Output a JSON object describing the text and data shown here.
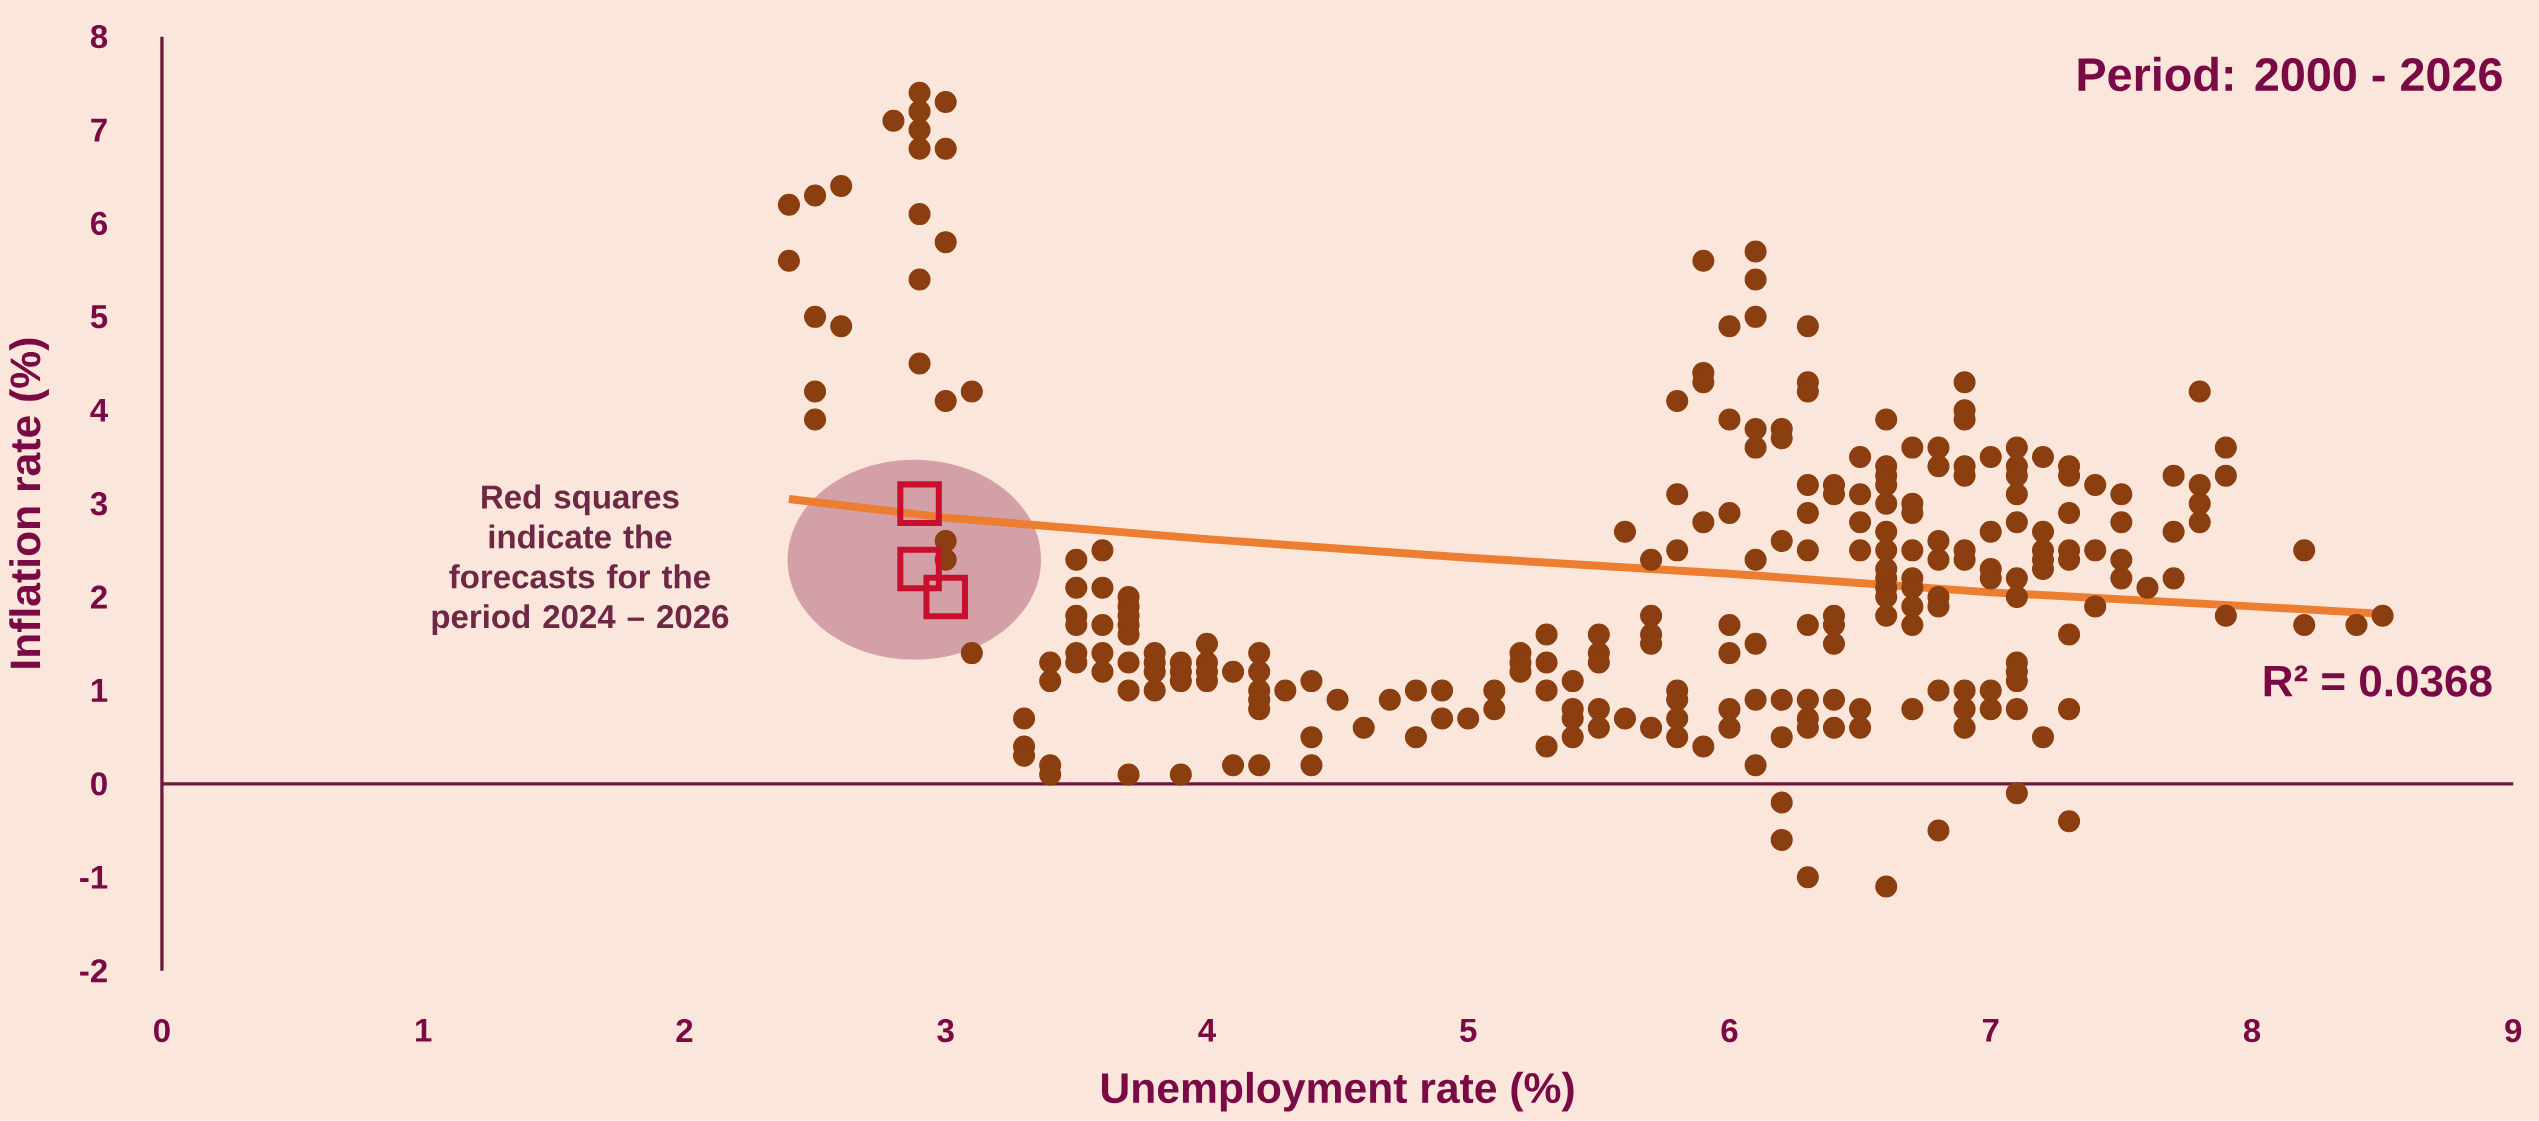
{
  "chart_data": {
    "type": "scatter",
    "title": "Period: 2000 - 2026",
    "xlabel": "Unemployment rate (%)",
    "ylabel": "Inflation rate (%)",
    "xlim": [
      0,
      9
    ],
    "ylim": [
      -2,
      8
    ],
    "xticks": [
      0,
      1,
      2,
      3,
      4,
      5,
      6,
      7,
      8,
      9
    ],
    "yticks": [
      -2,
      -1,
      0,
      1,
      2,
      3,
      4,
      5,
      6,
      7,
      8
    ],
    "grid": false,
    "ref_lines": [
      {
        "axis": "y",
        "value": 0,
        "color": "#6b1a3d"
      }
    ],
    "annotations": [
      "Red squares indicate the forecasts for the period 2024 – 2026",
      "R² = 0.0368"
    ],
    "series": [
      {
        "marker": "circle",
        "color": "#8b3e0f",
        "x": [
          2.4,
          2.4,
          2.5,
          2.6,
          2.5,
          2.6,
          2.5,
          2.5,
          2.8,
          2.9,
          2.9,
          2.9,
          2.9,
          3.0,
          3.0,
          2.9,
          3.0,
          2.9,
          2.9,
          3.0,
          3.1,
          3.0,
          3.0,
          3.1,
          3.3,
          3.3,
          3.3,
          3.4,
          3.4,
          3.4,
          3.4,
          3.5,
          3.5,
          3.5,
          3.5,
          3.5,
          3.5,
          3.6,
          3.6,
          3.6,
          3.6,
          3.6,
          3.7,
          3.7,
          3.7,
          3.7,
          3.7,
          3.7,
          3.7,
          3.7,
          3.8,
          3.8,
          3.8,
          3.8,
          3.9,
          3.9,
          3.9,
          3.9,
          4.0,
          4.0,
          4.0,
          4.0,
          4.1,
          4.1,
          4.2,
          4.2,
          4.2,
          4.2,
          4.2,
          4.2,
          4.3,
          4.4,
          4.4,
          4.4,
          4.5,
          4.6,
          4.7,
          4.8,
          4.8,
          4.9,
          4.9,
          5.0,
          5.1,
          5.1,
          5.2,
          5.2,
          5.2,
          5.3,
          5.3,
          5.3,
          5.3,
          5.4,
          5.4,
          5.4,
          5.4,
          5.5,
          5.5,
          5.5,
          5.5,
          5.5,
          5.6,
          5.6,
          5.7,
          5.7,
          5.7,
          5.7,
          5.7,
          5.8,
          5.8,
          5.8,
          5.8,
          5.8,
          5.8,
          5.8,
          5.9,
          5.9,
          5.9,
          5.9,
          5.9,
          6.0,
          6.0,
          6.0,
          6.0,
          6.0,
          6.0,
          6.0,
          6.1,
          6.1,
          6.1,
          6.1,
          6.1,
          6.1,
          6.1,
          6.1,
          6.1,
          6.2,
          6.2,
          6.2,
          6.2,
          6.2,
          6.2,
          6.2,
          6.3,
          6.3,
          6.3,
          6.3,
          6.3,
          6.3,
          6.3,
          6.3,
          6.3,
          6.3,
          6.3,
          6.4,
          6.4,
          6.4,
          6.4,
          6.4,
          6.4,
          6.4,
          6.5,
          6.5,
          6.5,
          6.5,
          6.5,
          6.5,
          6.6,
          6.6,
          6.6,
          6.6,
          6.6,
          6.6,
          6.6,
          6.6,
          6.6,
          6.6,
          6.6,
          6.6,
          6.6,
          6.7,
          6.7,
          6.7,
          6.7,
          6.7,
          6.7,
          6.7,
          6.7,
          6.7,
          6.8,
          6.8,
          6.8,
          6.8,
          6.8,
          6.8,
          6.8,
          6.8,
          6.9,
          6.9,
          6.9,
          6.9,
          6.9,
          6.9,
          6.9,
          6.9,
          6.9,
          6.9,
          7.0,
          7.0,
          7.0,
          7.0,
          7.0,
          7.0,
          7.1,
          7.1,
          7.1,
          7.1,
          7.1,
          7.1,
          7.1,
          7.1,
          7.1,
          7.1,
          7.1,
          7.1,
          7.2,
          7.2,
          7.2,
          7.2,
          7.2,
          7.2,
          7.3,
          7.3,
          7.3,
          7.3,
          7.3,
          7.3,
          7.3,
          7.3,
          7.4,
          7.4,
          7.4,
          7.5,
          7.5,
          7.5,
          7.5,
          7.6,
          7.7,
          7.7,
          7.7,
          7.8,
          7.8,
          7.8,
          7.8,
          7.9,
          7.9,
          7.9,
          8.2,
          8.2,
          8.4,
          8.5
        ],
        "values": [
          6.2,
          5.6,
          6.3,
          6.4,
          5.0,
          4.9,
          4.2,
          3.9,
          7.1,
          7.4,
          7.2,
          7.0,
          6.8,
          7.3,
          6.8,
          6.1,
          5.8,
          5.4,
          4.5,
          4.1,
          4.2,
          2.6,
          2.4,
          1.4,
          0.7,
          0.4,
          0.3,
          1.3,
          1.1,
          0.2,
          0.1,
          2.4,
          2.1,
          1.8,
          1.7,
          1.4,
          1.3,
          2.5,
          2.1,
          1.7,
          1.4,
          1.2,
          2.0,
          1.9,
          1.8,
          1.7,
          1.6,
          1.3,
          1.0,
          0.1,
          1.4,
          1.3,
          1.2,
          1.0,
          1.3,
          1.2,
          1.1,
          0.1,
          1.5,
          1.3,
          1.2,
          1.1,
          1.2,
          0.2,
          1.4,
          1.2,
          1.0,
          0.9,
          0.8,
          0.2,
          1.0,
          1.1,
          0.5,
          0.2,
          0.9,
          0.6,
          0.9,
          1.0,
          0.5,
          1.0,
          0.7,
          0.7,
          1.0,
          0.8,
          1.4,
          1.3,
          1.2,
          1.6,
          1.3,
          1.0,
          0.4,
          1.1,
          0.8,
          0.7,
          0.5,
          1.6,
          1.4,
          1.3,
          0.8,
          0.6,
          2.7,
          0.7,
          2.4,
          1.8,
          1.6,
          1.5,
          0.6,
          4.1,
          3.1,
          2.5,
          1.0,
          0.9,
          0.7,
          0.5,
          5.6,
          4.4,
          4.3,
          2.8,
          0.4,
          4.9,
          3.9,
          2.9,
          1.7,
          1.4,
          0.8,
          0.6,
          5.7,
          5.4,
          5.0,
          3.8,
          3.6,
          2.4,
          1.5,
          0.9,
          0.2,
          3.8,
          3.7,
          2.6,
          0.9,
          0.5,
          -0.2,
          -0.6,
          4.9,
          4.3,
          4.2,
          3.2,
          2.9,
          2.5,
          1.7,
          0.9,
          0.7,
          0.6,
          -1.0,
          3.2,
          3.1,
          1.8,
          1.7,
          1.5,
          0.9,
          0.6,
          3.5,
          3.1,
          2.8,
          2.5,
          0.8,
          0.6,
          3.9,
          3.4,
          3.3,
          3.2,
          3.0,
          2.7,
          2.5,
          2.3,
          2.2,
          2.1,
          2.0,
          1.8,
          -1.1,
          3.6,
          3.0,
          2.9,
          2.5,
          2.2,
          2.1,
          1.9,
          1.7,
          0.8,
          3.6,
          3.4,
          2.6,
          2.4,
          2.0,
          1.9,
          1.0,
          -0.5,
          4.3,
          4.0,
          3.9,
          3.4,
          3.3,
          2.5,
          2.4,
          1.0,
          0.8,
          0.6,
          3.5,
          2.7,
          2.3,
          2.2,
          1.0,
          0.8,
          3.6,
          3.4,
          3.3,
          3.1,
          2.8,
          2.2,
          2.0,
          1.3,
          1.2,
          1.1,
          0.8,
          -0.1,
          3.5,
          2.7,
          2.5,
          2.4,
          2.3,
          0.5,
          3.4,
          3.3,
          2.9,
          2.5,
          2.4,
          1.6,
          0.8,
          -0.4,
          3.2,
          2.5,
          1.9,
          3.1,
          2.8,
          2.4,
          2.2,
          2.1,
          3.3,
          2.7,
          2.2,
          4.2,
          3.2,
          3.0,
          2.8,
          3.6,
          3.3,
          1.8,
          2.5,
          1.7,
          1.7,
          1.8
        ]
      },
      {
        "type": "line",
        "marker": "none",
        "color": "#ed7d31",
        "x": [
          2.4,
          3.0,
          4.0,
          5.0,
          6.0,
          7.0,
          8.0,
          8.5
        ],
        "values": [
          3.05,
          2.85,
          2.62,
          2.42,
          2.25,
          2.05,
          1.9,
          1.82
        ]
      },
      {
        "marker": "square",
        "color": "#c8102e",
        "x": [
          2.9,
          2.9,
          3.0
        ],
        "values": [
          3.0,
          2.3,
          2.0
        ]
      }
    ]
  }
}
